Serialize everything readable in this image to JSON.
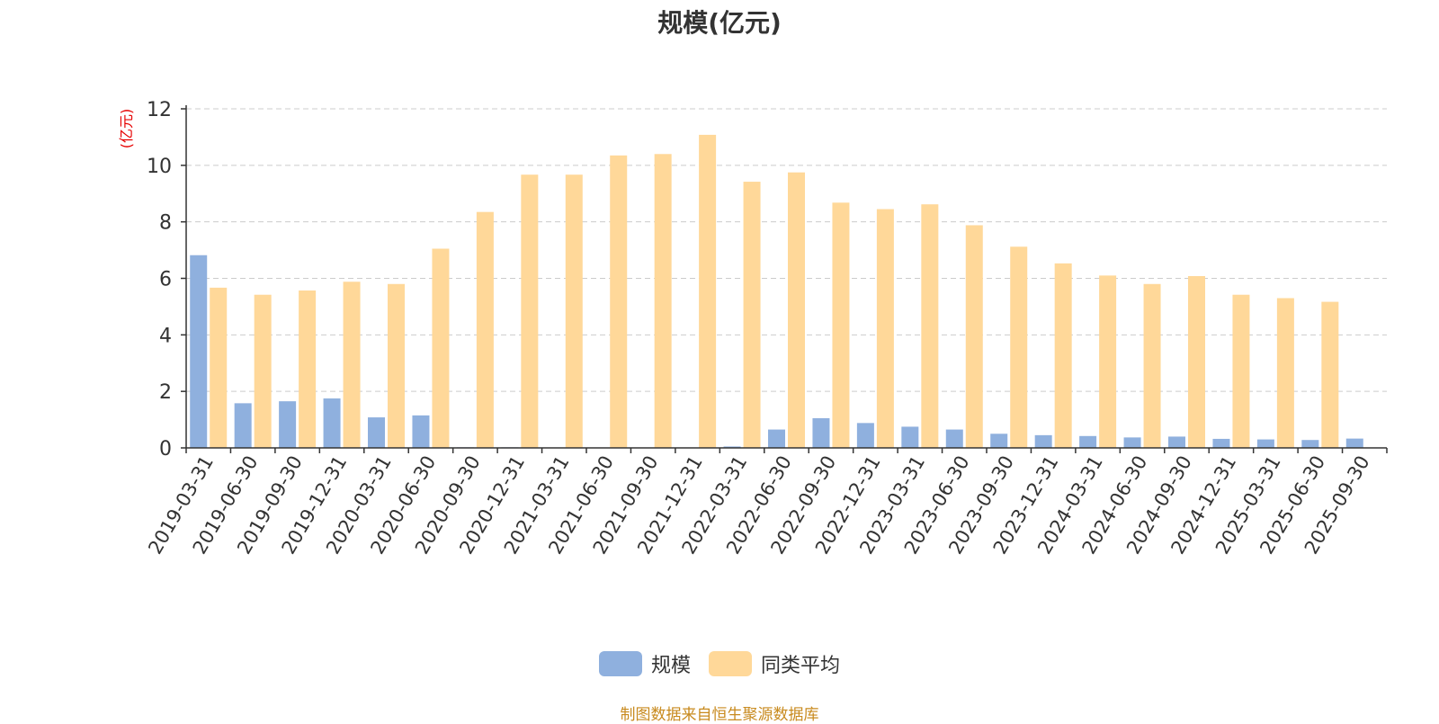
{
  "chart_data": {
    "type": "bar",
    "title": "规模(亿元)",
    "ylabel": "(亿元)",
    "xlabel": "",
    "ylim": [
      0,
      12
    ],
    "yticks": [
      0,
      2,
      4,
      6,
      8,
      10,
      12
    ],
    "grid": true,
    "legend_position": "bottom",
    "categories": [
      "2019-03-31",
      "2019-06-30",
      "2019-09-30",
      "2019-12-31",
      "2020-03-31",
      "2020-06-30",
      "2020-09-30",
      "2020-12-31",
      "2021-03-31",
      "2021-06-30",
      "2021-09-30",
      "2021-12-31",
      "2022-03-31",
      "2022-06-30",
      "2022-09-30",
      "2022-12-31",
      "2023-03-31",
      "2023-06-30",
      "2023-09-30",
      "2023-12-31",
      "2024-03-31",
      "2024-06-30",
      "2024-09-30",
      "2024-12-31",
      "2025-03-31",
      "2025-06-30",
      "2025-09-30"
    ],
    "series": [
      {
        "name": "规模",
        "color": "#8fb0de",
        "values": [
          6.82,
          1.58,
          1.65,
          1.75,
          1.08,
          1.15,
          0.02,
          0.02,
          0.01,
          0.01,
          0.01,
          0.01,
          0.05,
          0.65,
          1.05,
          0.88,
          0.75,
          0.65,
          0.5,
          0.45,
          0.42,
          0.37,
          0.4,
          0.32,
          0.3,
          0.28,
          0.33
        ]
      },
      {
        "name": "同类平均",
        "color": "#ffd899",
        "values": [
          5.67,
          5.42,
          5.57,
          5.88,
          5.8,
          7.05,
          8.35,
          9.67,
          9.67,
          10.35,
          10.4,
          11.08,
          9.42,
          9.75,
          8.68,
          8.45,
          8.62,
          7.88,
          7.12,
          6.53,
          6.1,
          5.8,
          6.08,
          5.42,
          5.3,
          5.17,
          null
        ]
      }
    ]
  },
  "footer": {
    "source": "制图数据来自恒生聚源数据库"
  }
}
